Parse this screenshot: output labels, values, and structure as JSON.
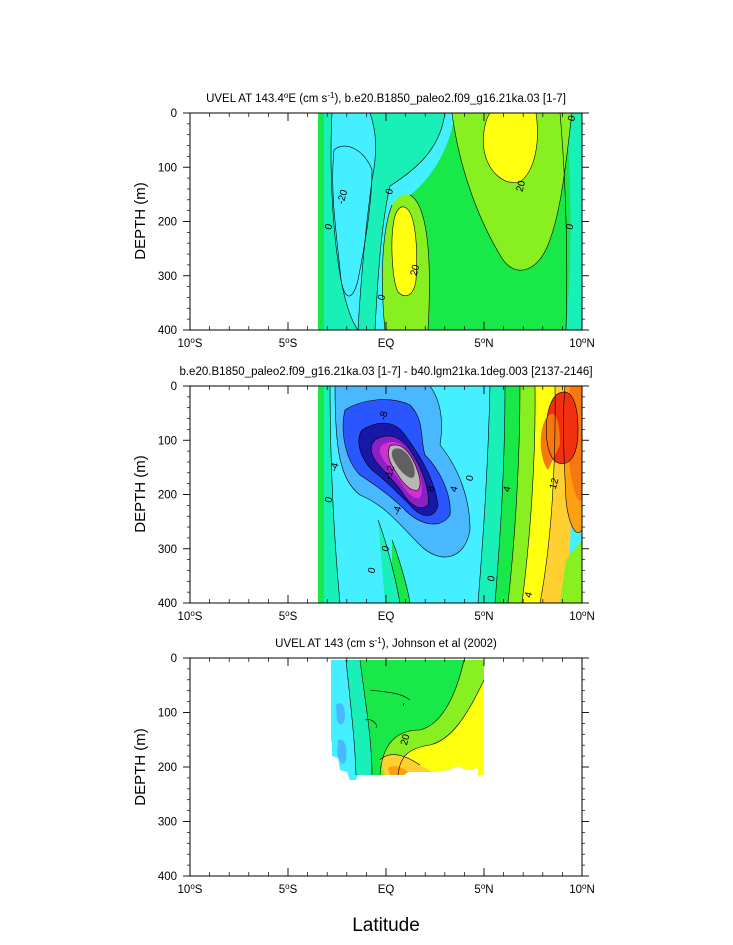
{
  "xlabel": "Latitude",
  "colors": {
    "c_neg_grey_dark": "#606060",
    "c_neg_grey": "#b8b8b8",
    "c_neg_magenta": "#d030d0",
    "c_neg_violet": "#8a20c8",
    "c_neg_navy": "#1818a8",
    "c_neg_blue": "#2a56ff",
    "c_neg_lightblue": "#4ab8ff",
    "c_cyan": "#44f0ff",
    "c_aqua": "#18f0b8",
    "c_green": "#18e848",
    "c_lime": "#88f020",
    "c_yellow": "#ffff10",
    "c_gold": "#ffd030",
    "c_orange": "#ffa010",
    "c_darkorange": "#f87810",
    "c_red": "#f03010"
  },
  "chart_data": [
    {
      "type": "heatmap",
      "title_main": "UVEL AT 143.4",
      "title_deg": "o",
      "title_mid": "E (cm s",
      "title_exp": "-1",
      "title_end": "), b.e20.B1850_paleo2.f09_g16.21ka.03 [1-7]",
      "ylabel": "DEPTH (m)",
      "xlim": [
        -10,
        10
      ],
      "ylim": [
        400,
        0
      ],
      "x_ticks": [
        -10,
        -5,
        0,
        5,
        10
      ],
      "x_tick_labels": [
        {
          "num": "10",
          "deg": "o",
          "hem": "S"
        },
        {
          "num": "5",
          "deg": "o",
          "hem": "S"
        },
        {
          "num": "EQ",
          "deg": "",
          "hem": ""
        },
        {
          "num": "5",
          "deg": "o",
          "hem": "N"
        },
        {
          "num": "10",
          "deg": "o",
          "hem": "N"
        }
      ],
      "y_ticks": [
        0,
        100,
        200,
        300,
        400
      ],
      "y_tick_labels": [
        "0",
        "100",
        "200",
        "300",
        "400"
      ],
      "data_lon_range": [
        -3.4,
        10
      ],
      "contour_labels": [
        {
          "text": "0",
          "lat": 9.5,
          "depth": 10
        },
        {
          "text": "20",
          "lat": 6.9,
          "depth": 135
        },
        {
          "text": "0",
          "lat": 0.2,
          "depth": 145
        },
        {
          "text": "-20",
          "lat": -2.2,
          "depth": 155
        },
        {
          "text": "0",
          "lat": -2.9,
          "depth": 210
        },
        {
          "text": "0",
          "lat": 9.4,
          "depth": 210
        },
        {
          "text": "20",
          "lat": 1.5,
          "depth": 290
        },
        {
          "text": "0",
          "lat": -0.2,
          "depth": 340
        }
      ]
    },
    {
      "type": "heatmap",
      "title_main": "b.e20.B1850_paleo2.f09_g16.21ka.03 [1-7] - b40.lgm21ka.1deg.003 [2137-2146]",
      "ylabel": "DEPTH (m)",
      "xlim": [
        -10,
        10
      ],
      "ylim": [
        400,
        0
      ],
      "x_ticks": [
        -10,
        -5,
        0,
        5,
        10
      ],
      "x_tick_labels": [
        {
          "num": "10",
          "deg": "o",
          "hem": "S"
        },
        {
          "num": "5",
          "deg": "o",
          "hem": "S"
        },
        {
          "num": "EQ",
          "deg": "",
          "hem": ""
        },
        {
          "num": "5",
          "deg": "o",
          "hem": "N"
        },
        {
          "num": "10",
          "deg": "o",
          "hem": "N"
        }
      ],
      "y_ticks": [
        0,
        100,
        200,
        300,
        400
      ],
      "y_tick_labels": [
        "0",
        "100",
        "200",
        "300",
        "400"
      ],
      "data_lon_range": [
        -3.4,
        10
      ],
      "contour_labels": [
        {
          "text": "-8",
          "lat": -0.1,
          "depth": 55
        },
        {
          "text": "-4",
          "lat": -2.6,
          "depth": 150
        },
        {
          "text": "-12",
          "lat": 0.2,
          "depth": 160
        },
        {
          "text": "8",
          "lat": 2.3,
          "depth": 190
        },
        {
          "text": "4",
          "lat": 3.5,
          "depth": 190
        },
        {
          "text": "0",
          "lat": 4.3,
          "depth": 170
        },
        {
          "text": "4",
          "lat": 6.2,
          "depth": 190
        },
        {
          "text": "12",
          "lat": 8.6,
          "depth": 180
        },
        {
          "text": "0",
          "lat": -2.9,
          "depth": 210
        },
        {
          "text": "-4",
          "lat": 0.6,
          "depth": 230
        },
        {
          "text": "0",
          "lat": 0.0,
          "depth": 300
        },
        {
          "text": "0",
          "lat": -0.7,
          "depth": 340
        },
        {
          "text": "0",
          "lat": 5.4,
          "depth": 355
        },
        {
          "text": "4",
          "lat": 7.3,
          "depth": 385
        }
      ]
    },
    {
      "type": "heatmap",
      "title_main": "UVEL AT 143 (cm s",
      "title_exp": "-1",
      "title_end": "), Johnson et al (2002)",
      "ylabel": "DEPTH (m)",
      "xlim": [
        -10,
        10
      ],
      "ylim": [
        400,
        0
      ],
      "x_ticks": [
        -10,
        -5,
        0,
        5,
        10
      ],
      "x_tick_labels": [
        {
          "num": "10",
          "deg": "o",
          "hem": "S"
        },
        {
          "num": "5",
          "deg": "o",
          "hem": "S"
        },
        {
          "num": "EQ",
          "deg": "",
          "hem": ""
        },
        {
          "num": "5",
          "deg": "o",
          "hem": "N"
        },
        {
          "num": "10",
          "deg": "o",
          "hem": "N"
        }
      ],
      "y_ticks": [
        0,
        100,
        200,
        300,
        400
      ],
      "y_tick_labels": [
        "0",
        "100",
        "200",
        "300",
        "400"
      ],
      "data_lon_range": [
        -2.7,
        5
      ],
      "contour_labels": [
        {
          "text": "-",
          "lat": 0.9,
          "depth": 85
        },
        {
          "text": "20",
          "lat": 1.0,
          "depth": 150
        }
      ]
    }
  ]
}
